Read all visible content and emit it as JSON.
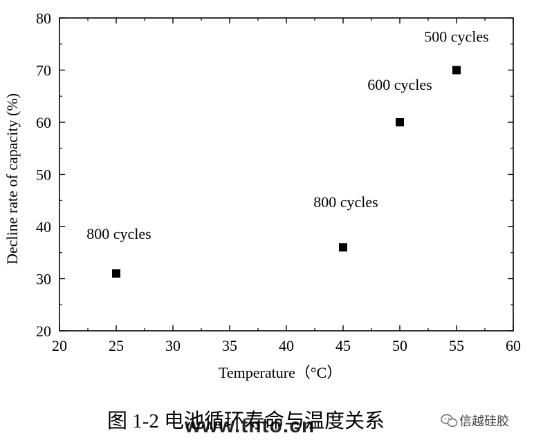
{
  "chart_data": {
    "type": "scatter",
    "xlabel": "Temperature（°C）",
    "ylabel": "Decline rate of capacity (%)",
    "xlim": [
      20,
      60
    ],
    "ylim": [
      20,
      80
    ],
    "x_ticks": [
      20,
      25,
      30,
      35,
      40,
      45,
      50,
      55,
      60
    ],
    "y_ticks": [
      20,
      30,
      40,
      50,
      60,
      70,
      80
    ],
    "grid": false,
    "points": [
      {
        "x": 25,
        "y": 31,
        "label": "800 cycles"
      },
      {
        "x": 45,
        "y": 36,
        "label": "800 cycles"
      },
      {
        "x": 50,
        "y": 60,
        "label": "600 cycles"
      },
      {
        "x": 55,
        "y": 70,
        "label": "500 cycles"
      }
    ]
  },
  "caption": "图 1-2 电池循环寿命与温度关系",
  "watermark": {
    "url": "www.tnto.cn",
    "account": "信越硅胶"
  },
  "colors": {
    "marker": "#000000",
    "axis": "#000000",
    "watermark": "#000000",
    "account": "#444444"
  }
}
